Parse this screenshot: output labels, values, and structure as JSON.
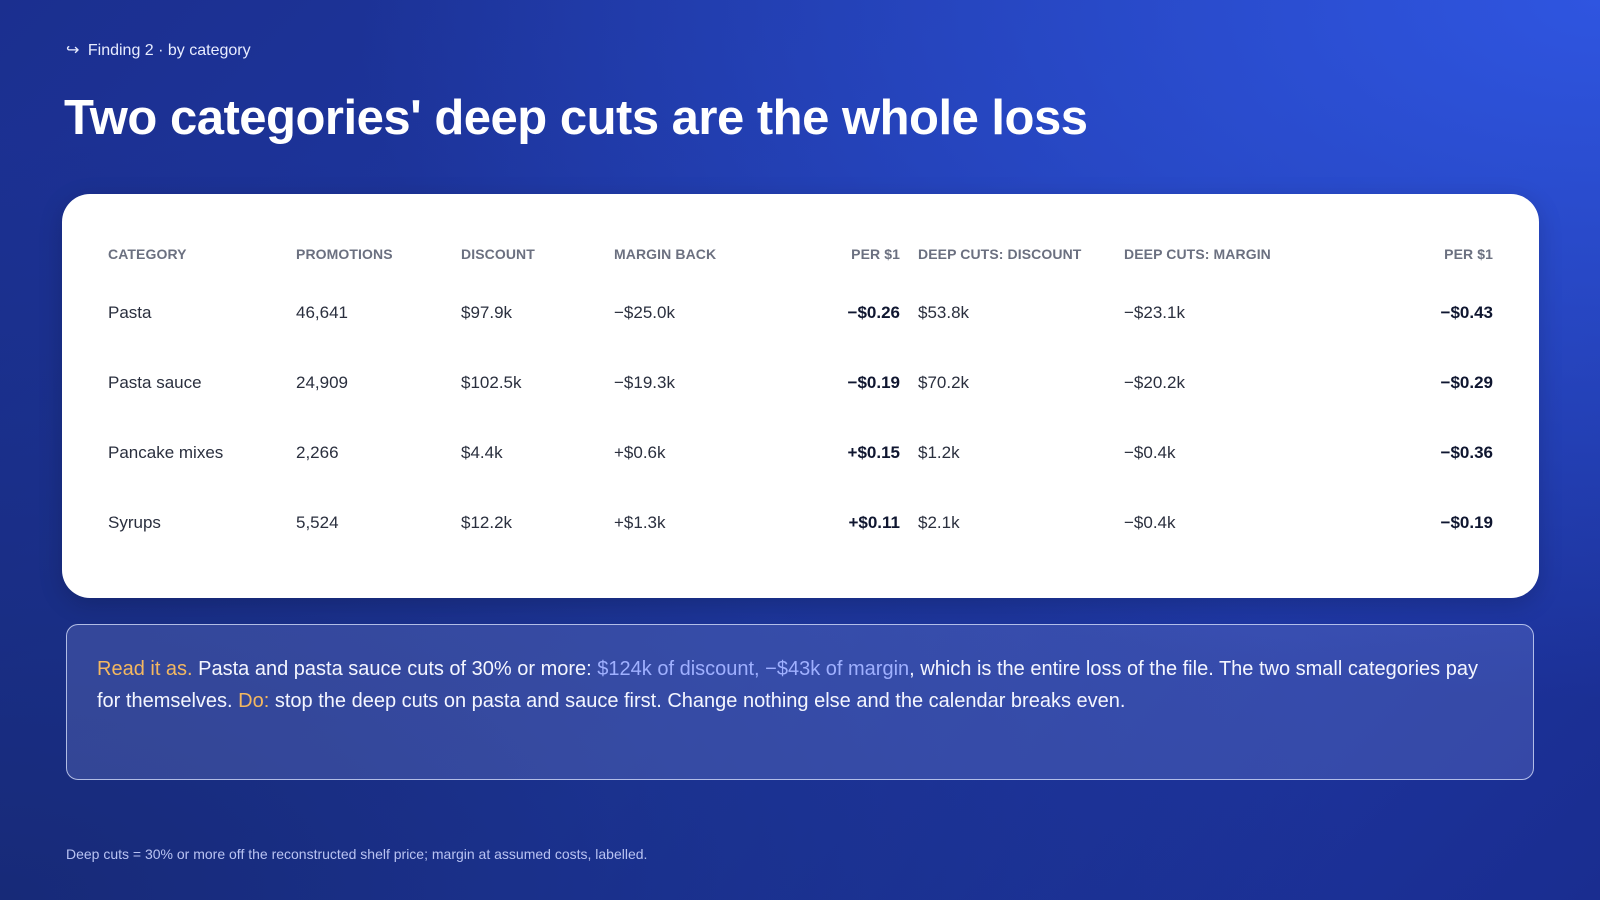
{
  "eyebrow": {
    "arrow": "↪",
    "text": "Finding 2 · by category"
  },
  "title": "Two categories' deep cuts are the whole loss",
  "table": {
    "headers": [
      "CATEGORY",
      "PROMOTIONS",
      "DISCOUNT",
      "MARGIN BACK",
      "PER $1",
      "DEEP CUTS: DISCOUNT",
      "DEEP CUTS: MARGIN",
      "PER $1"
    ],
    "rows": [
      {
        "category": "Pasta",
        "promotions": "46,641",
        "discount": "$97.9k",
        "margin_back": "−$25.0k",
        "per1": "−$0.26",
        "deep_discount": "$53.8k",
        "deep_margin": "−$23.1k",
        "deep_per1": "−$0.43"
      },
      {
        "category": "Pasta sauce",
        "promotions": "24,909",
        "discount": "$102.5k",
        "margin_back": "−$19.3k",
        "per1": "−$0.19",
        "deep_discount": "$70.2k",
        "deep_margin": "−$20.2k",
        "deep_per1": "−$0.29"
      },
      {
        "category": "Pancake mixes",
        "promotions": "2,266",
        "discount": "$4.4k",
        "margin_back": "+$0.6k",
        "per1": "+$0.15",
        "deep_discount": "$1.2k",
        "deep_margin": "−$0.4k",
        "deep_per1": "−$0.36"
      },
      {
        "category": "Syrups",
        "promotions": "5,524",
        "discount": "$12.2k",
        "margin_back": "+$1.3k",
        "per1": "+$0.11",
        "deep_discount": "$2.1k",
        "deep_margin": "−$0.4k",
        "deep_per1": "−$0.19"
      }
    ]
  },
  "callout": {
    "lead": "Read it as.",
    "text1": " Pasta and pasta sauce cuts of 30% or more: ",
    "highlight": "$124k of discount, −$43k of margin",
    "text2": ", which is the entire loss of the file. The two small categories pay for themselves. ",
    "do_label": "Do:",
    "text3": " stop the deep cuts on pasta and sauce first. Change nothing else and the calendar breaks even."
  },
  "footnote": "Deep cuts = 30% or more off the reconstructed shelf price; margin at assumed costs, labelled.",
  "colors": {
    "accent_orange": "#f4b860",
    "accent_blue": "#9fb0ff",
    "background": "#1f3aa8"
  }
}
